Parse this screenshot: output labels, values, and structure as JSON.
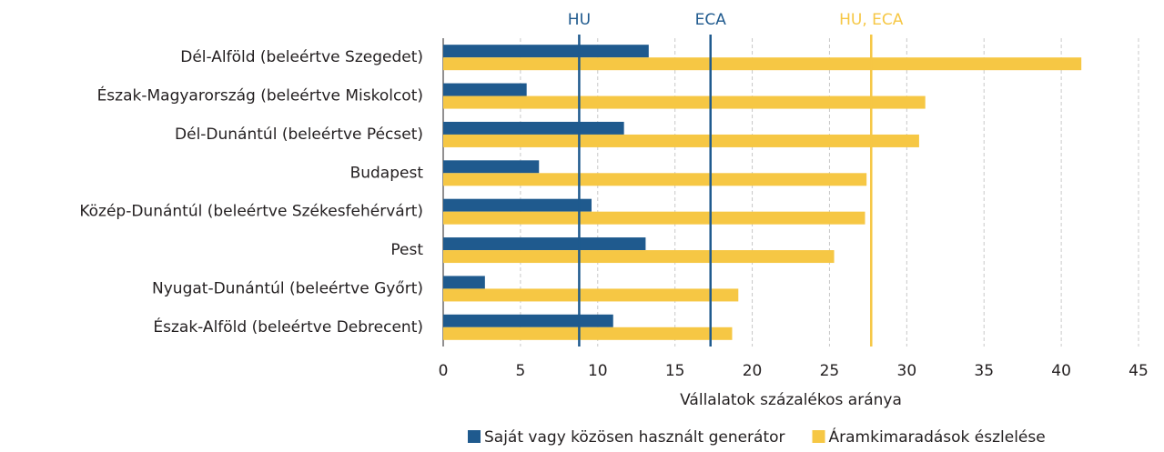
{
  "chart_data": {
    "type": "bar",
    "orientation": "horizontal",
    "categories": [
      "Dél-Alföld (beleértve Szegedet)",
      "Észak-Magyarország (beleértve Miskolcot)",
      "Dél-Dunántúl (beleértve Pécset)",
      "Budapest",
      "Közép-Dunántúl (beleértve Székesfehérvárt)",
      "Pest",
      "Nyugat-Dunántúl (beleértve Győrt)",
      "Észak-Alföld (beleértve Debrecent)"
    ],
    "series": [
      {
        "name": "Saját vagy közösen használt generátor",
        "color": "#1f5a8e",
        "values": [
          13.3,
          5.4,
          11.7,
          6.2,
          9.6,
          13.1,
          2.7,
          11.0
        ]
      },
      {
        "name": "Áramkimaradások észlelése",
        "color": "#f6c744",
        "values": [
          41.3,
          31.2,
          30.8,
          27.4,
          27.3,
          25.3,
          19.1,
          18.7
        ]
      }
    ],
    "reference_lines": [
      {
        "label": "HU",
        "value": 8.8,
        "color": "#1f5a8e"
      },
      {
        "label": "ECA",
        "value": 17.3,
        "color": "#1f5a8e"
      },
      {
        "label": "HU, ECA",
        "value": 27.7,
        "color": "#f6c744"
      }
    ],
    "xlabel": "Vállalatok százalékos aránya",
    "xlim": [
      0,
      45
    ],
    "xticks": [
      0,
      5,
      10,
      15,
      20,
      25,
      30,
      35,
      40,
      45
    ],
    "grid": true,
    "legend": "bottom"
  }
}
